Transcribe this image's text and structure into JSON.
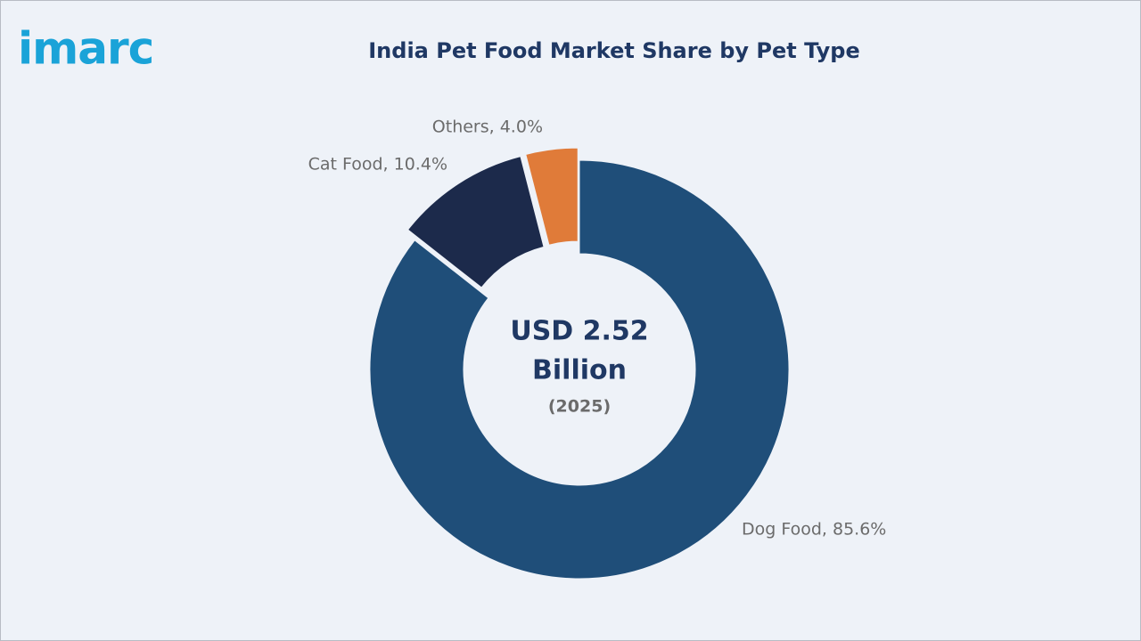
{
  "logo": "imarc",
  "chart_data": {
    "type": "donut",
    "title": "India Pet Food Market Share by Pet Type",
    "center_text": [
      "USD 2.52",
      "Billion"
    ],
    "center_subtext": "(2025)",
    "values": [
      85.6,
      10.4,
      4.0
    ],
    "value_labels": [
      "Dog Food, 85.6%",
      "Cat Food, 10.4%",
      "Others, 4.0%"
    ],
    "colors": [
      "#1f4e79",
      "#1c2a4b",
      "#e07b39"
    ]
  }
}
